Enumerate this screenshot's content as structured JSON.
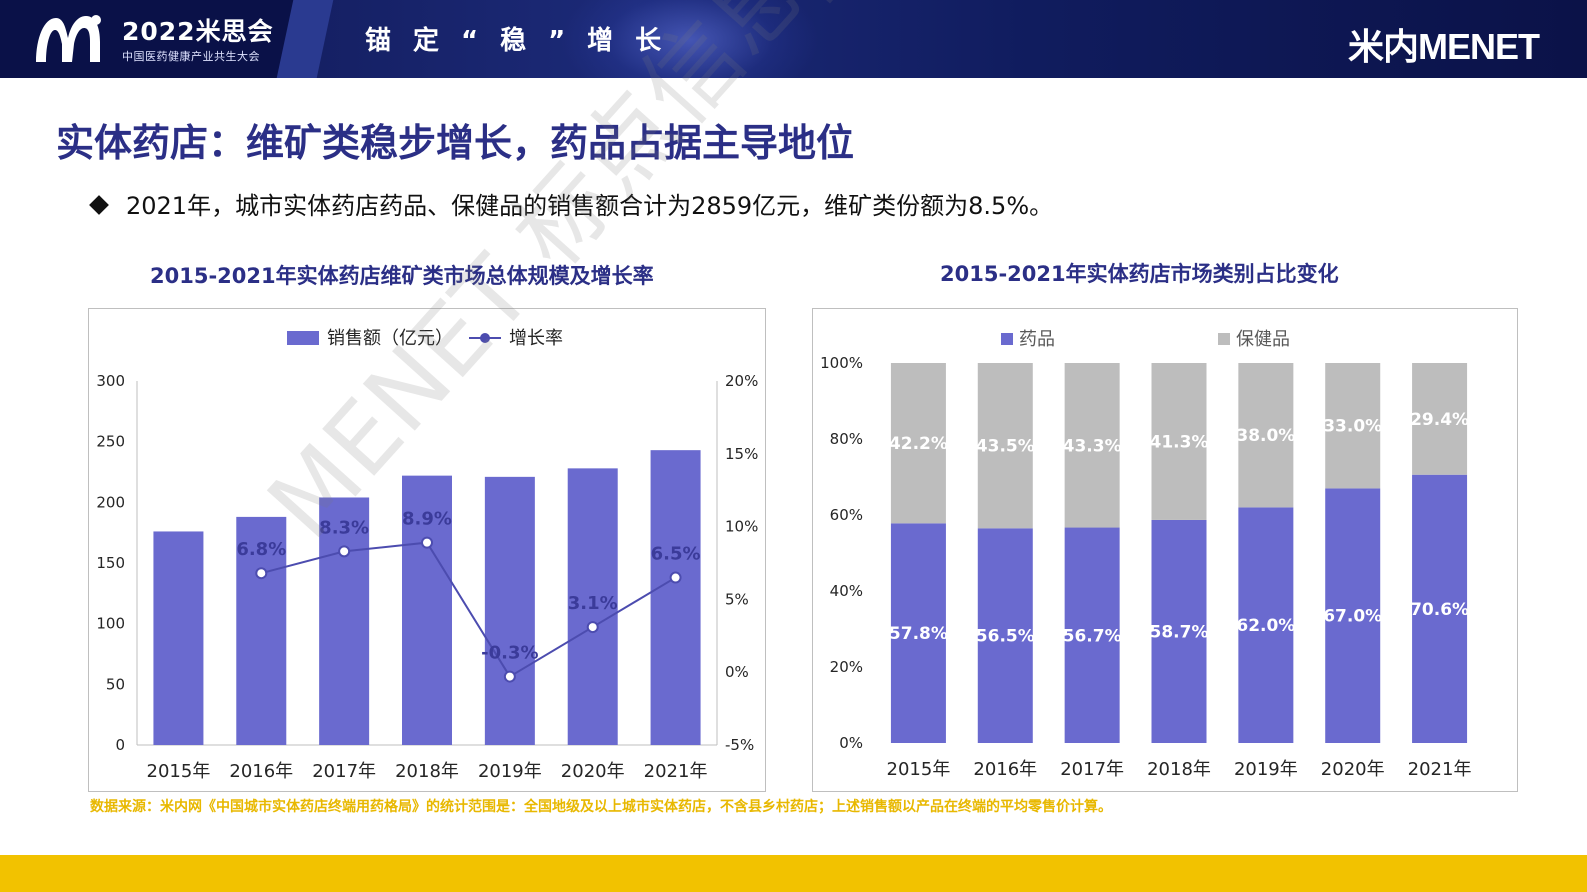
{
  "header": {
    "logo_year": "2022米思会",
    "logo_sub": "中国医药健康产业共生大会",
    "slogan": "锚定“稳”增长",
    "brand": "米内MENET"
  },
  "title": "实体药店：维矿类稳步增长，药品占据主导地位",
  "bullet": "2021年，城市实体药店药品、保健品的销售额合计为2859亿元，维矿类份额为8.5%。",
  "watermark": "MENET 标点信息_市场微信中",
  "source": "数据来源：米内网《中国城市实体药店终端用药格局》的统计范围是：全国地级及以上城市实体药店，不含县乡村药店；上述销售额以产品在终端的平均零售价计算。",
  "colors": {
    "bar": "#6a6acf",
    "line": "#4c4caf",
    "grey": "#bdbdbd",
    "title": "#2b2f86",
    "accent": "#f2c200"
  },
  "chart_data": [
    {
      "type": "bar",
      "title": "2015-2021年实体药店维矿类市场总体规模及增长率",
      "categories": [
        "2015年",
        "2016年",
        "2017年",
        "2018年",
        "2019年",
        "2020年",
        "2021年"
      ],
      "series": [
        {
          "name": "销售额（亿元）",
          "type": "bar",
          "axis": "left",
          "values": [
            176,
            188,
            204,
            222,
            221,
            228,
            243
          ]
        },
        {
          "name": "增长率",
          "type": "line",
          "axis": "right",
          "values": [
            null,
            6.8,
            8.3,
            8.9,
            -0.3,
            3.1,
            6.5
          ],
          "labels": [
            null,
            "6.8%",
            "8.3%",
            "8.9%",
            "-0.3%",
            "3.1%",
            "6.5%"
          ]
        }
      ],
      "y_left": {
        "min": 0,
        "max": 300,
        "ticks": [
          0,
          50,
          100,
          150,
          200,
          250,
          300
        ]
      },
      "y_right": {
        "min": -5,
        "max": 20,
        "ticks": [
          "-5%",
          "0%",
          "5%",
          "10%",
          "15%",
          "20%"
        ]
      },
      "legend": "top-center",
      "grid": false
    },
    {
      "type": "bar",
      "stacked": true,
      "title": "2015-2021年实体药店市场类别占比变化",
      "categories": [
        "2015年",
        "2016年",
        "2017年",
        "2018年",
        "2019年",
        "2020年",
        "2021年"
      ],
      "series": [
        {
          "name": "药品",
          "values": [
            57.8,
            56.5,
            56.7,
            58.7,
            62.0,
            67.0,
            70.6
          ],
          "labels": [
            "57.8%",
            "56.5%",
            "56.7%",
            "58.7%",
            "62.0%",
            "67.0%",
            "70.6%"
          ]
        },
        {
          "name": "保健品",
          "values": [
            42.2,
            43.5,
            43.3,
            41.3,
            38.0,
            33.0,
            29.4
          ],
          "labels": [
            "42.2%",
            "43.5%",
            "43.3%",
            "41.3%",
            "38.0%",
            "33.0%",
            "29.4%"
          ]
        }
      ],
      "y": {
        "min": 0,
        "max": 100,
        "ticks": [
          "0%",
          "20%",
          "40%",
          "60%",
          "80%",
          "100%"
        ]
      },
      "legend": "top-center",
      "grid": false
    }
  ]
}
